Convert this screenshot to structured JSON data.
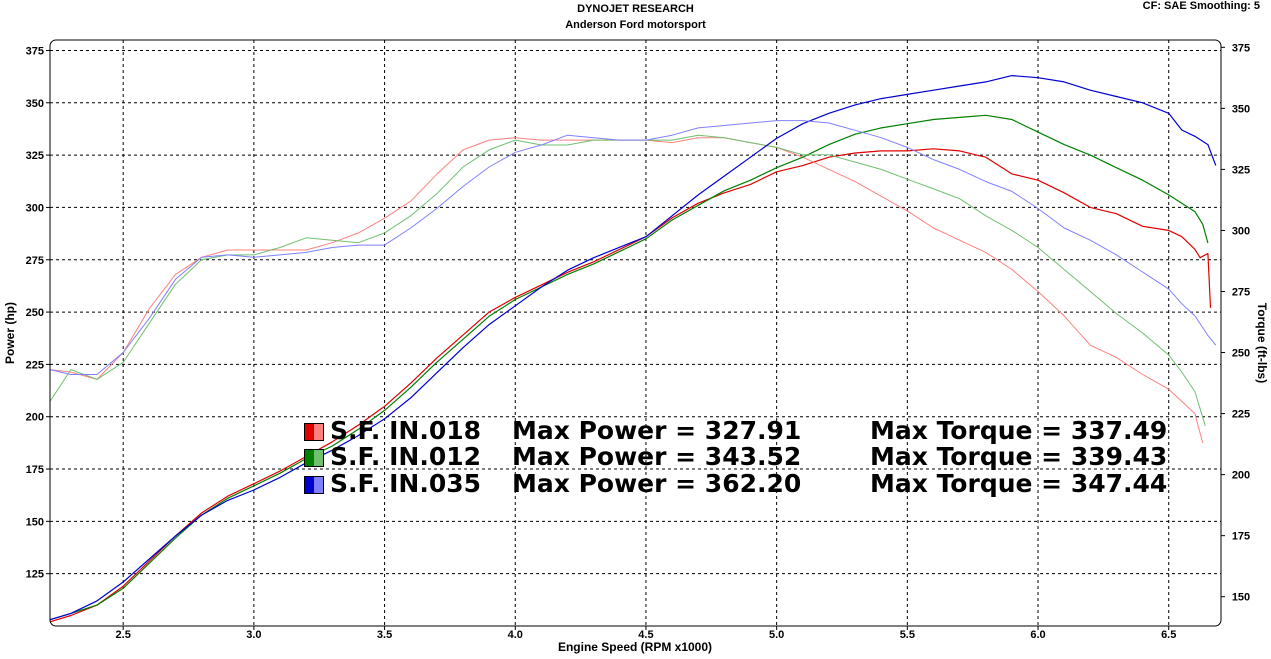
{
  "header": {
    "title": "DYNOJET RESEARCH",
    "subtitle": "Anderson Ford motorsport",
    "info": "CF: SAE  Smoothing: 5"
  },
  "legend": [
    {
      "name": "S.F. IN.018",
      "max_power_label": "Max Power = 327.91",
      "max_torque_label": "Max Torque = 337.49",
      "color": "#e00000",
      "light": "#ff8080"
    },
    {
      "name": "S.F. IN.012",
      "max_power_label": "Max Power = 343.52",
      "max_torque_label": "Max Torque = 339.43",
      "color": "#008000",
      "light": "#70c070"
    },
    {
      "name": "S.F. IN.035",
      "max_power_label": "Max Power = 362.20",
      "max_torque_label": "Max Torque = 347.44",
      "color": "#0000d0",
      "light": "#8080ff"
    }
  ],
  "chart_data": {
    "type": "line",
    "xlabel": "Engine Speed (RPM x1000)",
    "ylabel": "Power (hp)",
    "y2label": "Torque (ft-lbs)",
    "xlim": [
      2.22,
      6.7
    ],
    "ylim": [
      100,
      380
    ],
    "y2lim": [
      138,
      378
    ],
    "x_ticks": [
      2.5,
      3.0,
      3.5,
      4.0,
      4.5,
      5.0,
      5.5,
      6.0,
      6.5
    ],
    "y_ticks": [
      125,
      150,
      175,
      200,
      225,
      250,
      275,
      300,
      325,
      350,
      375
    ],
    "y2_ticks": [
      150,
      175,
      200,
      225,
      250,
      275,
      300,
      325,
      350,
      375
    ],
    "grid": true,
    "series": [
      {
        "name": "S.F. IN.018",
        "metric": "power",
        "axis": "left",
        "color": "#e00000",
        "x": [
          2.22,
          2.3,
          2.4,
          2.5,
          2.6,
          2.7,
          2.8,
          2.9,
          3.0,
          3.1,
          3.2,
          3.3,
          3.4,
          3.5,
          3.6,
          3.7,
          3.8,
          3.9,
          4.0,
          4.1,
          4.2,
          4.3,
          4.4,
          4.5,
          4.6,
          4.7,
          4.8,
          4.9,
          5.0,
          5.1,
          5.2,
          5.3,
          5.4,
          5.5,
          5.6,
          5.7,
          5.8,
          5.9,
          6.0,
          6.1,
          6.2,
          6.3,
          6.4,
          6.5,
          6.55,
          6.6,
          6.62,
          6.65,
          6.66
        ],
        "values": [
          102,
          105,
          110,
          119,
          131,
          143,
          154,
          162,
          168,
          174,
          181,
          188,
          196,
          205,
          216,
          228,
          239,
          250,
          257,
          263,
          269,
          274,
          280,
          286,
          295,
          302,
          307,
          311,
          317,
          320,
          324,
          326,
          327,
          327,
          328,
          327,
          324,
          316,
          313,
          307,
          300,
          297,
          291,
          289,
          286,
          280,
          276,
          278,
          252
        ]
      },
      {
        "name": "S.F. IN.018",
        "metric": "torque",
        "axis": "right",
        "color": "#ff8080",
        "x": [
          2.22,
          2.3,
          2.4,
          2.5,
          2.6,
          2.7,
          2.8,
          2.9,
          3.0,
          3.1,
          3.2,
          3.3,
          3.4,
          3.5,
          3.6,
          3.7,
          3.8,
          3.9,
          4.0,
          4.1,
          4.2,
          4.3,
          4.4,
          4.5,
          4.6,
          4.7,
          4.8,
          4.9,
          5.0,
          5.1,
          5.2,
          5.3,
          5.4,
          5.5,
          5.6,
          5.7,
          5.8,
          5.9,
          6.0,
          6.1,
          6.2,
          6.3,
          6.4,
          6.5,
          6.55,
          6.6,
          6.63
        ],
        "values": [
          243,
          242,
          239,
          250,
          268,
          282,
          289,
          292,
          292,
          292,
          292,
          295,
          299,
          305,
          312,
          323,
          333,
          337,
          338,
          337,
          337,
          337,
          337,
          337,
          336,
          338,
          338,
          336,
          334,
          330,
          325,
          320,
          314,
          308,
          301,
          296,
          291,
          284,
          275,
          265,
          253,
          248,
          241,
          235,
          230,
          225,
          213
        ]
      },
      {
        "name": "S.F. IN.012",
        "metric": "power",
        "axis": "left",
        "color": "#008000",
        "x": [
          2.22,
          2.3,
          2.4,
          2.5,
          2.6,
          2.7,
          2.8,
          2.9,
          3.0,
          3.1,
          3.2,
          3.3,
          3.4,
          3.5,
          3.6,
          3.7,
          3.8,
          3.9,
          4.0,
          4.1,
          4.2,
          4.3,
          4.4,
          4.5,
          4.6,
          4.7,
          4.8,
          4.9,
          5.0,
          5.1,
          5.2,
          5.3,
          5.4,
          5.5,
          5.6,
          5.7,
          5.8,
          5.9,
          6.0,
          6.1,
          6.2,
          6.3,
          6.4,
          6.5,
          6.55,
          6.6,
          6.63,
          6.65
        ],
        "values": [
          103,
          106,
          110,
          118,
          130,
          142,
          153,
          161,
          167,
          173,
          180,
          186,
          194,
          203,
          214,
          226,
          237,
          248,
          256,
          262,
          268,
          273,
          279,
          285,
          294,
          301,
          308,
          313,
          319,
          324,
          330,
          335,
          338,
          340,
          342,
          343,
          344,
          342,
          336,
          330,
          325,
          319,
          313,
          306,
          302,
          298,
          292,
          283
        ]
      },
      {
        "name": "S.F. IN.012",
        "metric": "torque",
        "axis": "right",
        "color": "#70c070",
        "x": [
          2.22,
          2.3,
          2.4,
          2.5,
          2.6,
          2.7,
          2.8,
          2.9,
          3.0,
          3.1,
          3.2,
          3.3,
          3.4,
          3.5,
          3.6,
          3.7,
          3.8,
          3.9,
          4.0,
          4.1,
          4.2,
          4.3,
          4.4,
          4.5,
          4.6,
          4.7,
          4.8,
          4.9,
          5.0,
          5.1,
          5.2,
          5.3,
          5.4,
          5.5,
          5.6,
          5.7,
          5.8,
          5.9,
          6.0,
          6.1,
          6.2,
          6.3,
          6.4,
          6.5,
          6.55,
          6.6,
          6.64
        ],
        "values": [
          230,
          243,
          239,
          246,
          262,
          278,
          288,
          290,
          290,
          293,
          297,
          296,
          295,
          299,
          306,
          315,
          326,
          333,
          337,
          335,
          335,
          337,
          337,
          337,
          337,
          339,
          338,
          336,
          334,
          331,
          331,
          328,
          325,
          321,
          317,
          313,
          306,
          300,
          293,
          284,
          275,
          266,
          258,
          249,
          242,
          234,
          220
        ]
      },
      {
        "name": "S.F. IN.035",
        "metric": "power",
        "axis": "left",
        "color": "#0000d0",
        "x": [
          2.22,
          2.3,
          2.4,
          2.5,
          2.6,
          2.7,
          2.8,
          2.9,
          3.0,
          3.1,
          3.2,
          3.3,
          3.4,
          3.5,
          3.6,
          3.7,
          3.8,
          3.9,
          4.0,
          4.1,
          4.2,
          4.3,
          4.4,
          4.5,
          4.6,
          4.7,
          4.8,
          4.9,
          5.0,
          5.1,
          5.2,
          5.3,
          5.4,
          5.5,
          5.6,
          5.7,
          5.8,
          5.9,
          6.0,
          6.1,
          6.2,
          6.3,
          6.4,
          6.5,
          6.55,
          6.6,
          6.65,
          6.68
        ],
        "values": [
          103,
          106,
          112,
          121,
          132,
          143,
          153,
          160,
          165,
          171,
          178,
          184,
          191,
          199,
          209,
          221,
          233,
          244,
          253,
          262,
          270,
          276,
          281,
          286,
          296,
          306,
          315,
          324,
          333,
          340,
          345,
          349,
          352,
          354,
          356,
          358,
          360,
          363,
          362,
          360,
          356,
          353,
          350,
          345,
          337,
          334,
          330,
          320
        ]
      },
      {
        "name": "S.F. IN.035",
        "metric": "torque",
        "axis": "right",
        "color": "#8080ff",
        "x": [
          2.22,
          2.3,
          2.4,
          2.5,
          2.6,
          2.7,
          2.8,
          2.9,
          3.0,
          3.1,
          3.2,
          3.3,
          3.4,
          3.5,
          3.6,
          3.7,
          3.8,
          3.9,
          4.0,
          4.1,
          4.2,
          4.3,
          4.4,
          4.5,
          4.6,
          4.7,
          4.8,
          4.9,
          5.0,
          5.1,
          5.2,
          5.3,
          5.4,
          5.5,
          5.6,
          5.7,
          5.8,
          5.9,
          6.0,
          6.1,
          6.2,
          6.3,
          6.4,
          6.5,
          6.55,
          6.6,
          6.65,
          6.68
        ],
        "values": [
          243,
          241,
          241,
          250,
          264,
          280,
          289,
          290,
          289,
          290,
          291,
          293,
          294,
          294,
          301,
          309,
          318,
          326,
          332,
          335,
          339,
          338,
          337,
          337,
          339,
          342,
          343,
          344,
          345,
          345,
          344,
          341,
          338,
          334,
          329,
          325,
          320,
          316,
          309,
          301,
          296,
          290,
          283,
          276,
          270,
          265,
          257,
          253
        ]
      }
    ]
  }
}
